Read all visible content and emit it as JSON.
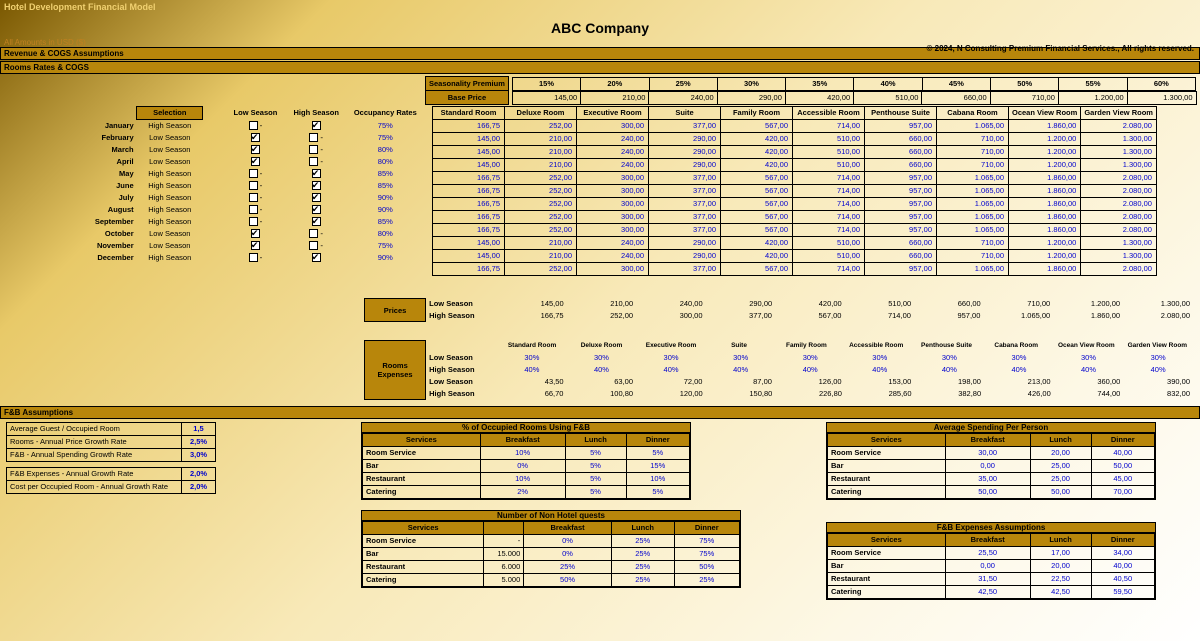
{
  "header": {
    "model_title": "Hotel Development Financial  Model",
    "currency_note": "All Amounts in  USD ($)",
    "company": "ABC Company",
    "copyright": "© 2024, N Consulting Premium Financial Services., All rights reserved."
  },
  "sections": {
    "rev_cogs": "Revenue & COGS Assumptions",
    "rooms": "Rooms Rates & COGS",
    "fnb": "F&B Assumptions",
    "selection": "Selection",
    "low": "Low Season",
    "high": "High Season",
    "occ": "Occupancy Rates",
    "seasonality": "Seasonality Premium",
    "base_price": "Base Price",
    "prices": "Prices",
    "rooms_exp": "Rooms Expenses"
  },
  "premiums": [
    "15%",
    "20%",
    "25%",
    "30%",
    "35%",
    "40%",
    "45%",
    "50%",
    "55%",
    "60%"
  ],
  "base_prices": [
    "145,00",
    "210,00",
    "240,00",
    "290,00",
    "420,00",
    "510,00",
    "660,00",
    "710,00",
    "1.200,00",
    "1.300,00"
  ],
  "room_types": [
    "Standard Room",
    "Deluxe Room",
    "Executive Room",
    "Suite",
    "Family Room",
    "Accessible Room",
    "Penthouse Suite",
    "Cabana Room",
    "Ocean View Room",
    "Garden View Room"
  ],
  "months": [
    {
      "name": "January",
      "season": "High Season",
      "low": false,
      "high": true,
      "occ": "75%",
      "row_type": "high"
    },
    {
      "name": "February",
      "season": "Low Season",
      "low": true,
      "high": false,
      "occ": "75%",
      "row_type": "low"
    },
    {
      "name": "March",
      "season": "Low Season",
      "low": true,
      "high": false,
      "occ": "80%",
      "row_type": "low"
    },
    {
      "name": "April",
      "season": "Low Season",
      "low": true,
      "high": false,
      "occ": "80%",
      "row_type": "low"
    },
    {
      "name": "May",
      "season": "High Season",
      "low": false,
      "high": true,
      "occ": "85%",
      "row_type": "high"
    },
    {
      "name": "June",
      "season": "High Season",
      "low": false,
      "high": true,
      "occ": "85%",
      "row_type": "high"
    },
    {
      "name": "July",
      "season": "High Season",
      "low": false,
      "high": true,
      "occ": "90%",
      "row_type": "high"
    },
    {
      "name": "August",
      "season": "High Season",
      "low": false,
      "high": true,
      "occ": "90%",
      "row_type": "high"
    },
    {
      "name": "September",
      "season": "High Season",
      "low": false,
      "high": true,
      "occ": "85%",
      "row_type": "high"
    },
    {
      "name": "October",
      "season": "Low Season",
      "low": true,
      "high": false,
      "occ": "80%",
      "row_type": "low"
    },
    {
      "name": "November",
      "season": "Low Season",
      "low": true,
      "high": false,
      "occ": "75%",
      "row_type": "low"
    },
    {
      "name": "December",
      "season": "High Season",
      "low": false,
      "high": true,
      "occ": "90%",
      "row_type": "high"
    }
  ],
  "price_rows": {
    "low": [
      "145,00",
      "210,00",
      "240,00",
      "290,00",
      "420,00",
      "510,00",
      "660,00",
      "710,00",
      "1.200,00",
      "1.300,00"
    ],
    "high": [
      "166,75",
      "252,00",
      "300,00",
      "377,00",
      "567,00",
      "714,00",
      "957,00",
      "1.065,00",
      "1.860,00",
      "2.080,00"
    ]
  },
  "rooms_expenses": {
    "low_pct": [
      "30%",
      "30%",
      "30%",
      "30%",
      "30%",
      "30%",
      "30%",
      "30%",
      "30%",
      "30%"
    ],
    "high_pct": [
      "40%",
      "40%",
      "40%",
      "40%",
      "40%",
      "40%",
      "40%",
      "40%",
      "40%",
      "40%"
    ],
    "low_val": [
      "43,50",
      "63,00",
      "72,00",
      "87,00",
      "126,00",
      "153,00",
      "198,00",
      "213,00",
      "360,00",
      "390,00"
    ],
    "high_val": [
      "66,70",
      "100,80",
      "120,00",
      "150,80",
      "226,80",
      "285,60",
      "382,80",
      "426,00",
      "744,00",
      "832,00"
    ]
  },
  "fnb_params": [
    {
      "label": "Average Guest / Occupied Room",
      "val": "1,5"
    },
    {
      "label": "Rooms - Annual Price Growth Rate",
      "val": "2,5%"
    },
    {
      "label": "F&B - Annual Spending Growth Rate",
      "val": "3,0%"
    },
    {
      "label": "F&B Expenses - Annual Growth Rate",
      "val": "2,0%"
    },
    {
      "label": "Cost per Occupied Room - Annual Growth Rate",
      "val": "2,0%"
    }
  ],
  "fnb_tables": {
    "labels": {
      "services": "Services",
      "breakfast": "Breakfast",
      "lunch": "Lunch",
      "dinner": "Dinner"
    },
    "pct_occ": {
      "title": "% of Occupied Rooms Using F&B",
      "rows": [
        {
          "svc": "Room Service",
          "b": "10%",
          "l": "5%",
          "d": "5%"
        },
        {
          "svc": "Bar",
          "b": "0%",
          "l": "5%",
          "d": "15%"
        },
        {
          "svc": "Restaurant",
          "b": "10%",
          "l": "5%",
          "d": "10%"
        },
        {
          "svc": "Catering",
          "b": "2%",
          "l": "5%",
          "d": "5%"
        }
      ]
    },
    "avg_spend": {
      "title": "Average Spending Per Person",
      "rows": [
        {
          "svc": "Room Service",
          "b": "30,00",
          "l": "20,00",
          "d": "40,00"
        },
        {
          "svc": "Bar",
          "b": "0,00",
          "l": "25,00",
          "d": "50,00"
        },
        {
          "svc": "Restaurant",
          "b": "35,00",
          "l": "25,00",
          "d": "45,00"
        },
        {
          "svc": "Catering",
          "b": "50,00",
          "l": "50,00",
          "d": "70,00"
        }
      ]
    },
    "non_hotel": {
      "title": "Number of Non Hotel quests",
      "rows": [
        {
          "svc": "Room Service",
          "ext": "-",
          "b": "0%",
          "l": "25%",
          "d": "75%"
        },
        {
          "svc": "Bar",
          "ext": "15.000",
          "b": "0%",
          "l": "25%",
          "d": "75%"
        },
        {
          "svc": "Restaurant",
          "ext": "6.000",
          "b": "25%",
          "l": "25%",
          "d": "50%"
        },
        {
          "svc": "Catering",
          "ext": "5.000",
          "b": "50%",
          "l": "25%",
          "d": "25%"
        }
      ]
    },
    "fnb_exp": {
      "title": "F&B Expenses Assumptions",
      "rows": [
        {
          "svc": "Room Service",
          "b": "25,50",
          "l": "17,00",
          "d": "34,00"
        },
        {
          "svc": "Bar",
          "b": "0,00",
          "l": "20,00",
          "d": "40,00"
        },
        {
          "svc": "Restaurant",
          "b": "31,50",
          "l": "22,50",
          "d": "40,50"
        },
        {
          "svc": "Catering",
          "b": "42,50",
          "l": "42,50",
          "d": "59,50"
        }
      ]
    }
  }
}
